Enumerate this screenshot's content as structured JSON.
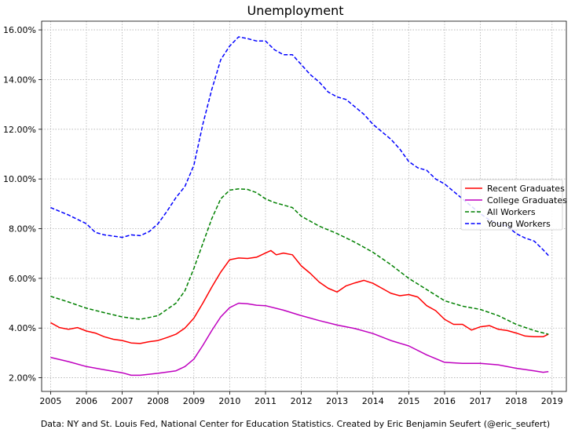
{
  "chart_data": {
    "type": "line",
    "title": "Unemployment",
    "caption": "Data: NY and St. Louis Fed, National Center for Education Statistics. Created by Eric Benjamin Seufert (@eric_seufert)",
    "xlabel": "",
    "ylabel": "",
    "xlim": [
      2004.75,
      2019.4
    ],
    "ylim": [
      1.45,
      16.35
    ],
    "x_ticks": [
      2005,
      2006,
      2007,
      2008,
      2009,
      2010,
      2011,
      2012,
      2013,
      2014,
      2015,
      2016,
      2017,
      2018,
      2019
    ],
    "y_ticks": [
      2,
      4,
      6,
      8,
      10,
      12,
      14,
      16
    ],
    "y_tick_labels": [
      "2.00%",
      "4.00%",
      "6.00%",
      "8.00%",
      "10.00%",
      "12.00%",
      "14.00%",
      "16.00%"
    ],
    "grid": true,
    "legend_position": "center-right",
    "series": [
      {
        "name": "Recent Graduates",
        "color": "#ff0000",
        "style": "solid",
        "points": [
          [
            2005.0,
            4.22
          ],
          [
            2005.25,
            4.02
          ],
          [
            2005.5,
            3.95
          ],
          [
            2005.75,
            4.02
          ],
          [
            2006.0,
            3.88
          ],
          [
            2006.25,
            3.8
          ],
          [
            2006.5,
            3.65
          ],
          [
            2006.75,
            3.55
          ],
          [
            2007.0,
            3.5
          ],
          [
            2007.25,
            3.4
          ],
          [
            2007.5,
            3.38
          ],
          [
            2007.75,
            3.45
          ],
          [
            2008.0,
            3.5
          ],
          [
            2008.25,
            3.62
          ],
          [
            2008.5,
            3.75
          ],
          [
            2008.75,
            4.0
          ],
          [
            2009.0,
            4.4
          ],
          [
            2009.25,
            5.0
          ],
          [
            2009.5,
            5.65
          ],
          [
            2009.75,
            6.25
          ],
          [
            2010.0,
            6.75
          ],
          [
            2010.25,
            6.82
          ],
          [
            2010.5,
            6.8
          ],
          [
            2010.75,
            6.85
          ],
          [
            2011.0,
            7.02
          ],
          [
            2011.15,
            7.12
          ],
          [
            2011.3,
            6.95
          ],
          [
            2011.5,
            7.02
          ],
          [
            2011.75,
            6.95
          ],
          [
            2012.0,
            6.5
          ],
          [
            2012.25,
            6.2
          ],
          [
            2012.5,
            5.85
          ],
          [
            2012.75,
            5.6
          ],
          [
            2013.0,
            5.45
          ],
          [
            2013.25,
            5.7
          ],
          [
            2013.5,
            5.82
          ],
          [
            2013.75,
            5.92
          ],
          [
            2014.0,
            5.8
          ],
          [
            2014.25,
            5.6
          ],
          [
            2014.5,
            5.4
          ],
          [
            2014.75,
            5.3
          ],
          [
            2015.0,
            5.35
          ],
          [
            2015.25,
            5.25
          ],
          [
            2015.5,
            4.9
          ],
          [
            2015.75,
            4.7
          ],
          [
            2016.0,
            4.35
          ],
          [
            2016.25,
            4.15
          ],
          [
            2016.5,
            4.15
          ],
          [
            2016.75,
            3.92
          ],
          [
            2017.0,
            4.05
          ],
          [
            2017.25,
            4.1
          ],
          [
            2017.5,
            3.95
          ],
          [
            2017.75,
            3.9
          ],
          [
            2018.0,
            3.8
          ],
          [
            2018.25,
            3.68
          ],
          [
            2018.5,
            3.65
          ],
          [
            2018.75,
            3.65
          ],
          [
            2018.9,
            3.75
          ]
        ]
      },
      {
        "name": "College Graduates",
        "color": "#bf00bf",
        "style": "solid",
        "points": [
          [
            2005.0,
            2.82
          ],
          [
            2005.5,
            2.65
          ],
          [
            2006.0,
            2.45
          ],
          [
            2006.5,
            2.32
          ],
          [
            2007.0,
            2.2
          ],
          [
            2007.25,
            2.1
          ],
          [
            2007.5,
            2.1
          ],
          [
            2008.0,
            2.18
          ],
          [
            2008.5,
            2.28
          ],
          [
            2008.75,
            2.45
          ],
          [
            2009.0,
            2.75
          ],
          [
            2009.25,
            3.3
          ],
          [
            2009.5,
            3.9
          ],
          [
            2009.75,
            4.45
          ],
          [
            2010.0,
            4.82
          ],
          [
            2010.25,
            5.0
          ],
          [
            2010.5,
            4.98
          ],
          [
            2010.75,
            4.92
          ],
          [
            2011.0,
            4.9
          ],
          [
            2011.5,
            4.72
          ],
          [
            2012.0,
            4.5
          ],
          [
            2012.5,
            4.3
          ],
          [
            2013.0,
            4.12
          ],
          [
            2013.5,
            3.98
          ],
          [
            2014.0,
            3.78
          ],
          [
            2014.5,
            3.5
          ],
          [
            2015.0,
            3.28
          ],
          [
            2015.5,
            2.92
          ],
          [
            2016.0,
            2.62
          ],
          [
            2016.5,
            2.58
          ],
          [
            2017.0,
            2.58
          ],
          [
            2017.5,
            2.52
          ],
          [
            2018.0,
            2.38
          ],
          [
            2018.5,
            2.28
          ],
          [
            2018.75,
            2.22
          ],
          [
            2018.9,
            2.25
          ]
        ]
      },
      {
        "name": "All Workers",
        "color": "#008000",
        "style": "dashed",
        "points": [
          [
            2005.0,
            5.28
          ],
          [
            2005.5,
            5.05
          ],
          [
            2006.0,
            4.8
          ],
          [
            2006.5,
            4.62
          ],
          [
            2007.0,
            4.45
          ],
          [
            2007.5,
            4.35
          ],
          [
            2008.0,
            4.5
          ],
          [
            2008.5,
            5.0
          ],
          [
            2008.75,
            5.5
          ],
          [
            2009.0,
            6.4
          ],
          [
            2009.25,
            7.4
          ],
          [
            2009.5,
            8.4
          ],
          [
            2009.75,
            9.2
          ],
          [
            2010.0,
            9.55
          ],
          [
            2010.25,
            9.6
          ],
          [
            2010.5,
            9.58
          ],
          [
            2010.75,
            9.45
          ],
          [
            2011.0,
            9.2
          ],
          [
            2011.25,
            9.05
          ],
          [
            2011.5,
            8.95
          ],
          [
            2011.75,
            8.85
          ],
          [
            2012.0,
            8.5
          ],
          [
            2012.5,
            8.1
          ],
          [
            2013.0,
            7.8
          ],
          [
            2013.5,
            7.45
          ],
          [
            2014.0,
            7.05
          ],
          [
            2014.5,
            6.55
          ],
          [
            2015.0,
            6.0
          ],
          [
            2015.5,
            5.55
          ],
          [
            2016.0,
            5.1
          ],
          [
            2016.5,
            4.88
          ],
          [
            2017.0,
            4.75
          ],
          [
            2017.5,
            4.5
          ],
          [
            2018.0,
            4.15
          ],
          [
            2018.5,
            3.9
          ],
          [
            2018.9,
            3.75
          ]
        ]
      },
      {
        "name": "Young Workers",
        "color": "#0000ff",
        "style": "dashed",
        "points": [
          [
            2005.0,
            8.85
          ],
          [
            2005.5,
            8.55
          ],
          [
            2006.0,
            8.2
          ],
          [
            2006.25,
            7.85
          ],
          [
            2006.5,
            7.75
          ],
          [
            2006.75,
            7.7
          ],
          [
            2007.0,
            7.65
          ],
          [
            2007.25,
            7.75
          ],
          [
            2007.5,
            7.72
          ],
          [
            2007.75,
            7.88
          ],
          [
            2008.0,
            8.2
          ],
          [
            2008.25,
            8.7
          ],
          [
            2008.5,
            9.25
          ],
          [
            2008.75,
            9.7
          ],
          [
            2009.0,
            10.55
          ],
          [
            2009.25,
            12.2
          ],
          [
            2009.5,
            13.6
          ],
          [
            2009.75,
            14.8
          ],
          [
            2010.0,
            15.35
          ],
          [
            2010.25,
            15.72
          ],
          [
            2010.5,
            15.65
          ],
          [
            2010.75,
            15.55
          ],
          [
            2011.0,
            15.55
          ],
          [
            2011.25,
            15.2
          ],
          [
            2011.5,
            15.0
          ],
          [
            2011.75,
            15.0
          ],
          [
            2012.0,
            14.6
          ],
          [
            2012.25,
            14.2
          ],
          [
            2012.5,
            13.9
          ],
          [
            2012.75,
            13.5
          ],
          [
            2013.0,
            13.3
          ],
          [
            2013.25,
            13.2
          ],
          [
            2013.5,
            12.9
          ],
          [
            2013.75,
            12.6
          ],
          [
            2014.0,
            12.2
          ],
          [
            2014.25,
            11.9
          ],
          [
            2014.5,
            11.6
          ],
          [
            2014.75,
            11.2
          ],
          [
            2015.0,
            10.7
          ],
          [
            2015.25,
            10.45
          ],
          [
            2015.5,
            10.35
          ],
          [
            2015.75,
            10.0
          ],
          [
            2016.0,
            9.8
          ],
          [
            2016.25,
            9.5
          ],
          [
            2016.5,
            9.2
          ],
          [
            2016.75,
            8.9
          ],
          [
            2017.0,
            8.6
          ],
          [
            2017.25,
            8.35
          ],
          [
            2017.5,
            8.2
          ],
          [
            2017.75,
            8.1
          ],
          [
            2018.0,
            7.8
          ],
          [
            2018.25,
            7.62
          ],
          [
            2018.5,
            7.5
          ],
          [
            2018.75,
            7.15
          ],
          [
            2018.9,
            6.92
          ]
        ]
      }
    ]
  }
}
